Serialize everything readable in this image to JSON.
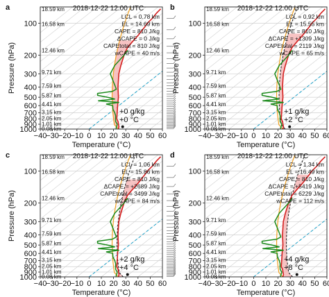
{
  "figure": {
    "x_ticks": [
      -40,
      -30,
      -20,
      -10,
      0,
      10,
      20,
      30,
      40,
      50,
      60
    ],
    "y_ticks": [
      100,
      200,
      300,
      400,
      500,
      600,
      700,
      800,
      900,
      1000
    ],
    "xlabel": "Temperature (°C)",
    "ylabel": "Pressure (hPa)",
    "xlim": [
      -40,
      60
    ],
    "ylim_hPa": [
      1000,
      70
    ],
    "height_labels": [
      {
        "p": 73,
        "text": "18.59 km"
      },
      {
        "p": 101,
        "text": "16.58 km"
      },
      {
        "p": 180,
        "text": "12.46 km"
      },
      {
        "p": 290,
        "text": "9.71 km"
      },
      {
        "p": 390,
        "text": "7.59 km"
      },
      {
        "p": 480,
        "text": "5.87 km"
      },
      {
        "p": 580,
        "text": "4.41 km"
      },
      {
        "p": 690,
        "text": "3.15 km"
      },
      {
        "p": 790,
        "text": "2.05 km"
      },
      {
        "p": 890,
        "text": "1.01 km"
      },
      {
        "p": 990,
        "text": "0.08 km"
      }
    ],
    "colors": {
      "environment": "#d42020",
      "parcel_base": "#f0a020",
      "dewpoint": "#1b8a1b",
      "iso0": "#1aa0c8",
      "cape_fill": "#f6b8b8",
      "cape_fill_base": "#f5c36a"
    }
  },
  "chart_data": [
    {
      "panel": "a",
      "type": "line",
      "title": "2018-12-22 12:00 UTC",
      "stats": [
        "LCL = 0.78 km",
        "EL = 14.69 km",
        "CAPE = 810 J/kg",
        "ΔCAPE = 0 J/kg",
        "CAPEtotal = 810 J/kg",
        "wCAPE = 40 m/s"
      ],
      "perturbation": [
        "+0 g/kg",
        "+0 °C"
      ],
      "surface_T": 25,
      "el_p": 145,
      "el_T": 0,
      "environment": [
        [
          1000,
          24
        ],
        [
          950,
          22
        ],
        [
          900,
          19
        ],
        [
          850,
          16
        ],
        [
          800,
          12
        ],
        [
          700,
          6
        ],
        [
          600,
          -1
        ],
        [
          500,
          -9
        ],
        [
          400,
          -20
        ],
        [
          300,
          -33
        ],
        [
          250,
          -40
        ],
        [
          200,
          -48
        ],
        [
          170,
          -53
        ],
        [
          150,
          -55
        ],
        [
          130,
          -57
        ],
        [
          110,
          -60
        ],
        [
          100,
          -62
        ],
        [
          90,
          -63
        ],
        [
          80,
          -65
        ],
        [
          73,
          -66
        ]
      ],
      "dewpoint": [
        [
          1000,
          22
        ],
        [
          950,
          20
        ],
        [
          900,
          18
        ],
        [
          850,
          14
        ],
        [
          800,
          11
        ],
        [
          750,
          8
        ],
        [
          700,
          4
        ],
        [
          650,
          -1
        ],
        [
          600,
          -5
        ],
        [
          580,
          -12
        ],
        [
          560,
          -3
        ],
        [
          540,
          -22
        ],
        [
          520,
          -10
        ],
        [
          500,
          -18
        ],
        [
          480,
          -28
        ],
        [
          460,
          -30
        ],
        [
          440,
          -20
        ],
        [
          420,
          -19
        ],
        [
          400,
          -22
        ],
        [
          300,
          -40
        ],
        [
          250,
          -45
        ],
        [
          200,
          -48
        ],
        [
          180,
          -50
        ]
      ]
    },
    {
      "panel": "b",
      "type": "line",
      "title": "2018-12-22 12:00 UTC",
      "stats": [
        "LCL = 0.92 km",
        "EL = 15.55 km",
        "CAPE = 810 J/kg",
        "ΔCAPE = +1309 J/kg",
        "CAPEtotal = 2119 J/kg",
        "wCAPE = 65 m/s"
      ],
      "perturbation": [
        "+1 g/kg",
        "+2 °C"
      ],
      "surface_T": 27,
      "el_p": 125,
      "el_T": -5,
      "environment": [
        [
          1000,
          24
        ],
        [
          950,
          22
        ],
        [
          900,
          19
        ],
        [
          850,
          16
        ],
        [
          800,
          12
        ],
        [
          700,
          6
        ],
        [
          600,
          -1
        ],
        [
          500,
          -9
        ],
        [
          400,
          -20
        ],
        [
          300,
          -33
        ],
        [
          250,
          -40
        ],
        [
          200,
          -48
        ],
        [
          170,
          -53
        ],
        [
          150,
          -55
        ],
        [
          130,
          -57
        ],
        [
          110,
          -60
        ],
        [
          100,
          -62
        ],
        [
          90,
          -63
        ],
        [
          80,
          -65
        ],
        [
          73,
          -66
        ]
      ],
      "dewpoint": [
        [
          1000,
          22
        ],
        [
          950,
          20
        ],
        [
          900,
          18
        ],
        [
          850,
          14
        ],
        [
          800,
          11
        ],
        [
          750,
          8
        ],
        [
          700,
          4
        ],
        [
          650,
          -1
        ],
        [
          600,
          -5
        ],
        [
          580,
          -12
        ],
        [
          560,
          -3
        ],
        [
          540,
          -22
        ],
        [
          520,
          -10
        ],
        [
          500,
          -18
        ],
        [
          480,
          -28
        ],
        [
          460,
          -30
        ],
        [
          440,
          -20
        ],
        [
          420,
          -19
        ],
        [
          400,
          -22
        ],
        [
          300,
          -40
        ],
        [
          250,
          -45
        ],
        [
          200,
          -48
        ],
        [
          180,
          -50
        ]
      ]
    },
    {
      "panel": "c",
      "type": "line",
      "title": "2018-12-22 12:00 UTC",
      "stats": [
        "LCL = 1.06 km",
        "EL = 15.86 km",
        "CAPE = 810 J/kg",
        "ΔCAPE = +2689 J/kg",
        "CAPEtotal = 3499 J/kg",
        "wCAPE = 84 m/s"
      ],
      "perturbation": [
        "+2 g/kg",
        "+4 °C"
      ],
      "surface_T": 29,
      "el_p": 120,
      "el_T": -8,
      "environment": [
        [
          1000,
          24
        ],
        [
          950,
          22
        ],
        [
          900,
          19
        ],
        [
          850,
          16
        ],
        [
          800,
          12
        ],
        [
          700,
          6
        ],
        [
          600,
          -1
        ],
        [
          500,
          -9
        ],
        [
          400,
          -20
        ],
        [
          300,
          -33
        ],
        [
          250,
          -40
        ],
        [
          200,
          -48
        ],
        [
          170,
          -53
        ],
        [
          150,
          -55
        ],
        [
          130,
          -57
        ],
        [
          110,
          -60
        ],
        [
          100,
          -62
        ],
        [
          90,
          -63
        ],
        [
          80,
          -65
        ],
        [
          73,
          -66
        ]
      ],
      "dewpoint": [
        [
          1000,
          22
        ],
        [
          950,
          20
        ],
        [
          900,
          18
        ],
        [
          850,
          14
        ],
        [
          800,
          11
        ],
        [
          750,
          8
        ],
        [
          700,
          4
        ],
        [
          650,
          -1
        ],
        [
          600,
          -5
        ],
        [
          580,
          -12
        ],
        [
          560,
          -3
        ],
        [
          540,
          -22
        ],
        [
          520,
          -10
        ],
        [
          500,
          -18
        ],
        [
          480,
          -28
        ],
        [
          460,
          -30
        ],
        [
          440,
          -20
        ],
        [
          420,
          -19
        ],
        [
          400,
          -22
        ],
        [
          300,
          -40
        ],
        [
          250,
          -45
        ],
        [
          200,
          -48
        ],
        [
          180,
          -50
        ]
      ]
    },
    {
      "panel": "d",
      "type": "line",
      "title": "2018-12-22 12:00 UTC",
      "stats": [
        "LCL = 1.34 km",
        "EL = 16.49 km",
        "CAPE = 810 J/kg",
        "ΔCAPE = +5419 J/kg",
        "CAPEtotal = 6229 J/kg",
        "wCAPE = 112 m/s"
      ],
      "perturbation": [
        "+4 g/kg",
        "+8 °C"
      ],
      "surface_T": 33,
      "el_p": 108,
      "el_T": -12,
      "environment": [
        [
          1000,
          24
        ],
        [
          950,
          22
        ],
        [
          900,
          19
        ],
        [
          850,
          16
        ],
        [
          800,
          12
        ],
        [
          700,
          6
        ],
        [
          600,
          -1
        ],
        [
          500,
          -9
        ],
        [
          400,
          -20
        ],
        [
          300,
          -33
        ],
        [
          250,
          -40
        ],
        [
          200,
          -48
        ],
        [
          170,
          -53
        ],
        [
          150,
          -55
        ],
        [
          130,
          -57
        ],
        [
          110,
          -60
        ],
        [
          100,
          -62
        ],
        [
          90,
          -63
        ],
        [
          80,
          -65
        ],
        [
          73,
          -66
        ]
      ],
      "dewpoint": [
        [
          1000,
          22
        ],
        [
          950,
          20
        ],
        [
          900,
          18
        ],
        [
          850,
          14
        ],
        [
          800,
          11
        ],
        [
          750,
          8
        ],
        [
          700,
          4
        ],
        [
          650,
          -1
        ],
        [
          600,
          -5
        ],
        [
          580,
          -12
        ],
        [
          560,
          -3
        ],
        [
          540,
          -22
        ],
        [
          520,
          -10
        ],
        [
          500,
          -18
        ],
        [
          480,
          -28
        ],
        [
          460,
          -30
        ],
        [
          440,
          -20
        ],
        [
          420,
          -19
        ],
        [
          400,
          -22
        ],
        [
          300,
          -40
        ],
        [
          250,
          -45
        ],
        [
          200,
          -48
        ],
        [
          180,
          -50
        ]
      ]
    }
  ]
}
